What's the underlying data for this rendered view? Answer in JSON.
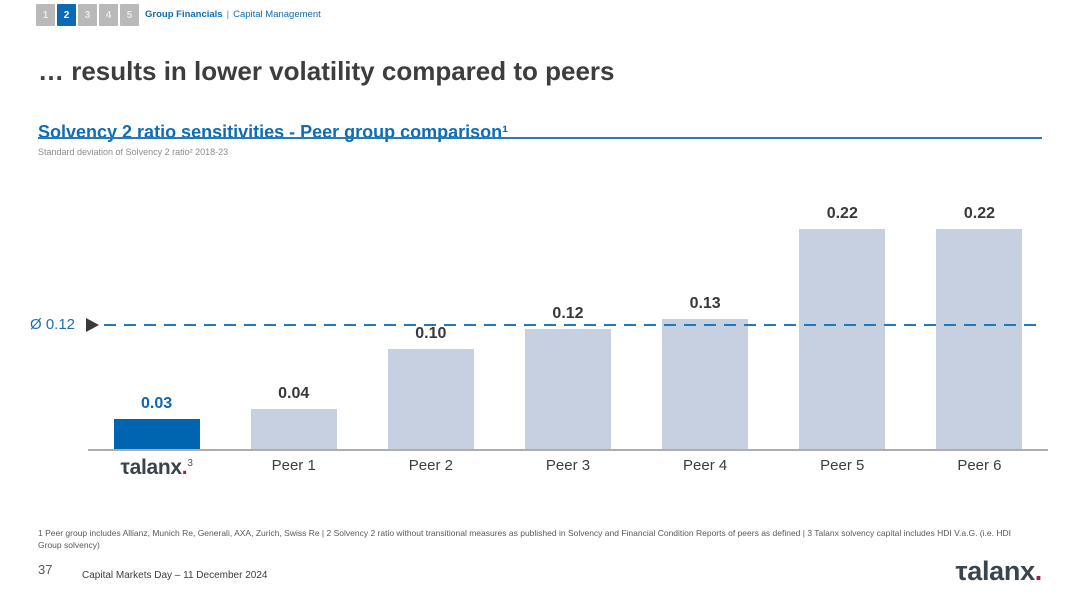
{
  "nav": {
    "steps": [
      "1",
      "2",
      "3",
      "4",
      "5"
    ],
    "active_step": "2",
    "section": "Group Financials",
    "separator": "|",
    "subsection": "Capital Management"
  },
  "slide": {
    "title": "… results in lower volatility compared to peers",
    "heading": "Solvency 2 ratio sensitivities - Peer group comparison¹",
    "subcaption": "Standard deviation of Solvency 2 ratio² 2018-23"
  },
  "chart_data": {
    "type": "bar",
    "title": "Solvency 2 ratio sensitivities - Peer group comparison",
    "subtitle": "Standard deviation of Solvency 2 ratio 2018-23",
    "categories": [
      "Talanx",
      "Peer 1",
      "Peer 2",
      "Peer 3",
      "Peer 4",
      "Peer 5",
      "Peer 6"
    ],
    "values": [
      0.03,
      0.04,
      0.1,
      0.12,
      0.13,
      0.22,
      0.22
    ],
    "value_labels": [
      "0.03",
      "0.04",
      "0.10",
      "0.12",
      "0.13",
      "0.22",
      "0.22"
    ],
    "highlight_category": "Talanx",
    "average_line": {
      "label": "Ø 0.12",
      "value": 0.12
    },
    "ylim": [
      0,
      0.25
    ],
    "grid": false,
    "legend": "none",
    "bar_color": "#c6d0e0",
    "highlight_color": "#0065b1",
    "average_line_color": "#2577bc"
  },
  "talanx_axis_label": {
    "text": "τalanx",
    "dot": ".",
    "sup": "3"
  },
  "footnote": "1 Peer group includes Allianz, Munich Re, Generali, AXA, Zurich, Swiss Re | 2 Solvency 2 ratio without transitional measures as published in Solvency and Financial Condition Reports of peers as defined | 3 Talanx solvency capital includes HDI V.a.G. (i.e. HDI Group solvency)",
  "footer": {
    "page_number": "37",
    "event": "Capital Markets Day – 11 December 2024"
  },
  "logo": {
    "text": "τalanx",
    "dot": "."
  },
  "colors": {
    "accent_blue": "#0d6db6",
    "title_gray": "#3d3d3d",
    "logo_dot": "#a61c4d",
    "inactive_step": "#b9b9b9"
  }
}
